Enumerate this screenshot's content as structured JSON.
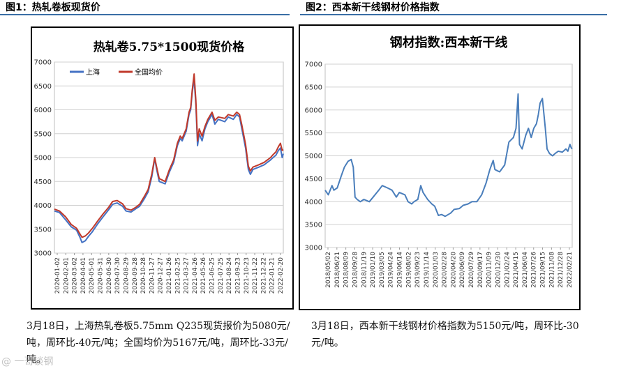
{
  "header": {
    "fig1_title": "图1：热轧卷板现货价",
    "fig2_title": "图2：西本新干线钢材价格指数"
  },
  "captions": {
    "left": "3月18日，上海热轧卷板5.75mm Q235现货报价为5080元/吨，周环比-40元/吨；全国均价为5167元/吨，周环比-33元/吨。",
    "right": "3月18日，西本新干线钢材价格指数为5150元/吨，周环比-30元/吨。"
  },
  "watermark": "@ 一哥谈钢",
  "colors": {
    "shanghai": "#4472c4",
    "national": "#c0392b",
    "index": "#4a7ebb",
    "rule": "#3a6ea5"
  },
  "chart_data": [
    {
      "type": "line",
      "title": "热轧卷5.75*1500现货价格",
      "ylim": [
        3000,
        7000
      ],
      "yticks": [
        3000,
        3500,
        4000,
        4500,
        5000,
        5500,
        6000,
        6500,
        7000
      ],
      "xlabels": [
        "2020-01-02",
        "2020-02-01",
        "2020-03-02",
        "2020-04-01",
        "2020-05-01",
        "2020-05-31",
        "2020-06-30",
        "2020-07-30",
        "2020-08-29",
        "2020-09-28",
        "2020-10-28",
        "2020-11-27",
        "2020-12-27",
        "2021-01-26",
        "2021-02-25",
        "2021-03-27",
        "2021-04-26",
        "2021-05-26",
        "2021-06-25",
        "2021-07-25",
        "2021-08-24",
        "2021-09-23",
        "2021-10-23",
        "2021-11-22",
        "2021-12-22",
        "2022-01-21",
        "2022-02-20"
      ],
      "legend_position": "top-left",
      "x_range": [
        "2020-01-02",
        "2022-03-18"
      ],
      "series": [
        {
          "name": "上海",
          "points": [
            [
              "2020-01-02",
              3880
            ],
            [
              "2020-01-20",
              3850
            ],
            [
              "2020-02-10",
              3700
            ],
            [
              "2020-03-01",
              3550
            ],
            [
              "2020-03-20",
              3480
            ],
            [
              "2020-04-01",
              3330
            ],
            [
              "2020-04-08",
              3220
            ],
            [
              "2020-04-20",
              3260
            ],
            [
              "2020-05-01",
              3350
            ],
            [
              "2020-05-15",
              3450
            ],
            [
              "2020-06-01",
              3600
            ],
            [
              "2020-06-20",
              3750
            ],
            [
              "2020-07-10",
              3900
            ],
            [
              "2020-07-25",
              4020
            ],
            [
              "2020-08-10",
              4050
            ],
            [
              "2020-08-29",
              3980
            ],
            [
              "2020-09-10",
              3880
            ],
            [
              "2020-09-28",
              3860
            ],
            [
              "2020-10-15",
              3930
            ],
            [
              "2020-10-28",
              3980
            ],
            [
              "2020-11-15",
              4150
            ],
            [
              "2020-11-27",
              4280
            ],
            [
              "2020-12-10",
              4600
            ],
            [
              "2020-12-20",
              4980
            ],
            [
              "2020-12-27",
              4750
            ],
            [
              "2021-01-05",
              4500
            ],
            [
              "2021-01-26",
              4450
            ],
            [
              "2021-02-10",
              4700
            ],
            [
              "2021-02-25",
              4900
            ],
            [
              "2021-03-10",
              5250
            ],
            [
              "2021-03-20",
              5400
            ],
            [
              "2021-03-27",
              5350
            ],
            [
              "2021-04-10",
              5550
            ],
            [
              "2021-04-20",
              5900
            ],
            [
              "2021-04-26",
              6000
            ],
            [
              "2021-05-01",
              6350
            ],
            [
              "2021-05-08",
              6650
            ],
            [
              "2021-05-14",
              6100
            ],
            [
              "2021-05-20",
              5250
            ],
            [
              "2021-05-26",
              5500
            ],
            [
              "2021-06-05",
              5350
            ],
            [
              "2021-06-15",
              5600
            ],
            [
              "2021-06-25",
              5750
            ],
            [
              "2021-07-10",
              5900
            ],
            [
              "2021-07-20",
              5700
            ],
            [
              "2021-08-01",
              5800
            ],
            [
              "2021-08-24",
              5750
            ],
            [
              "2021-09-05",
              5850
            ],
            [
              "2021-09-23",
              5800
            ],
            [
              "2021-10-05",
              5900
            ],
            [
              "2021-10-15",
              5850
            ],
            [
              "2021-10-23",
              5600
            ],
            [
              "2021-11-05",
              5200
            ],
            [
              "2021-11-15",
              4750
            ],
            [
              "2021-11-22",
              4650
            ],
            [
              "2021-12-01",
              4750
            ],
            [
              "2021-12-22",
              4800
            ],
            [
              "2022-01-10",
              4850
            ],
            [
              "2022-01-21",
              4900
            ],
            [
              "2022-02-01",
              4950
            ],
            [
              "2022-02-10",
              5000
            ],
            [
              "2022-02-20",
              5050
            ],
            [
              "2022-03-01",
              5150
            ],
            [
              "2022-03-08",
              5200
            ],
            [
              "2022-03-14",
              5000
            ],
            [
              "2022-03-18",
              5080
            ]
          ]
        },
        {
          "name": "全国均价",
          "points": [
            [
              "2020-01-02",
              3920
            ],
            [
              "2020-01-20",
              3880
            ],
            [
              "2020-02-10",
              3760
            ],
            [
              "2020-03-01",
              3600
            ],
            [
              "2020-03-20",
              3520
            ],
            [
              "2020-04-01",
              3400
            ],
            [
              "2020-04-08",
              3330
            ],
            [
              "2020-04-20",
              3360
            ],
            [
              "2020-05-01",
              3420
            ],
            [
              "2020-05-15",
              3520
            ],
            [
              "2020-06-01",
              3660
            ],
            [
              "2020-06-20",
              3810
            ],
            [
              "2020-07-10",
              3950
            ],
            [
              "2020-07-25",
              4080
            ],
            [
              "2020-08-10",
              4100
            ],
            [
              "2020-08-29",
              4030
            ],
            [
              "2020-09-10",
              3930
            ],
            [
              "2020-09-28",
              3900
            ],
            [
              "2020-10-15",
              3960
            ],
            [
              "2020-10-28",
              4020
            ],
            [
              "2020-11-15",
              4200
            ],
            [
              "2020-11-27",
              4330
            ],
            [
              "2020-12-10",
              4660
            ],
            [
              "2020-12-20",
              5000
            ],
            [
              "2020-12-27",
              4800
            ],
            [
              "2021-01-05",
              4560
            ],
            [
              "2021-01-26",
              4500
            ],
            [
              "2021-02-10",
              4750
            ],
            [
              "2021-02-25",
              4950
            ],
            [
              "2021-03-10",
              5300
            ],
            [
              "2021-03-20",
              5450
            ],
            [
              "2021-03-27",
              5400
            ],
            [
              "2021-04-10",
              5600
            ],
            [
              "2021-04-20",
              5950
            ],
            [
              "2021-04-26",
              6050
            ],
            [
              "2021-05-01",
              6400
            ],
            [
              "2021-05-08",
              6750
            ],
            [
              "2021-05-14",
              6200
            ],
            [
              "2021-05-20",
              5350
            ],
            [
              "2021-05-26",
              5600
            ],
            [
              "2021-06-05",
              5450
            ],
            [
              "2021-06-15",
              5650
            ],
            [
              "2021-06-25",
              5800
            ],
            [
              "2021-07-10",
              5950
            ],
            [
              "2021-07-20",
              5780
            ],
            [
              "2021-08-01",
              5850
            ],
            [
              "2021-08-24",
              5820
            ],
            [
              "2021-09-05",
              5900
            ],
            [
              "2021-09-23",
              5870
            ],
            [
              "2021-10-05",
              5950
            ],
            [
              "2021-10-15",
              5900
            ],
            [
              "2021-10-23",
              5680
            ],
            [
              "2021-11-05",
              5280
            ],
            [
              "2021-11-15",
              4820
            ],
            [
              "2021-11-22",
              4720
            ],
            [
              "2021-12-01",
              4800
            ],
            [
              "2021-12-22",
              4850
            ],
            [
              "2022-01-10",
              4900
            ],
            [
              "2022-01-21",
              4950
            ],
            [
              "2022-02-01",
              5000
            ],
            [
              "2022-02-10",
              5060
            ],
            [
              "2022-02-20",
              5120
            ],
            [
              "2022-03-01",
              5230
            ],
            [
              "2022-03-08",
              5300
            ],
            [
              "2022-03-14",
              5150
            ],
            [
              "2022-03-18",
              5167
            ]
          ]
        }
      ]
    },
    {
      "type": "line",
      "title": "钢材指数:西本新干线",
      "ylim": [
        3000,
        7000
      ],
      "yticks": [
        3000,
        3500,
        4000,
        4500,
        5000,
        5500,
        6000,
        6500,
        7000
      ],
      "xlabels": [
        "2018/05/02",
        "2018/06/21",
        "2018/08/09",
        "2018/09/28",
        "2018/11/19",
        "2019/01/10",
        "2019/03/05",
        "2019/04/24",
        "2019/06/14",
        "2019/08/02",
        "2019/09/23",
        "2019/11/14",
        "2020/01/03",
        "2020/02/28",
        "2020/04/20",
        "2020/06/09",
        "2020/07/29",
        "2020/09/17",
        "2020/11/09",
        "2020/12/30",
        "2021/02/24",
        "2021/04/15",
        "2021/06/04",
        "2021/07/26",
        "2021/09/15",
        "2021/11/08",
        "2021/12/28",
        "2022/02/21"
      ],
      "x_range": [
        "2018-05-02",
        "2022-03-18"
      ],
      "series": [
        {
          "name": "",
          "points": [
            [
              "2018-05-02",
              4250
            ],
            [
              "2018-05-20",
              4150
            ],
            [
              "2018-06-10",
              4350
            ],
            [
              "2018-06-21",
              4250
            ],
            [
              "2018-07-10",
              4300
            ],
            [
              "2018-08-01",
              4550
            ],
            [
              "2018-08-20",
              4750
            ],
            [
              "2018-09-10",
              4880
            ],
            [
              "2018-09-28",
              4920
            ],
            [
              "2018-10-10",
              4750
            ],
            [
              "2018-10-20",
              4100
            ],
            [
              "2018-11-01",
              4050
            ],
            [
              "2018-11-19",
              4000
            ],
            [
              "2018-12-10",
              4050
            ],
            [
              "2019-01-10",
              4000
            ],
            [
              "2019-02-01",
              4100
            ],
            [
              "2019-03-05",
              4250
            ],
            [
              "2019-03-25",
              4350
            ],
            [
              "2019-04-24",
              4300
            ],
            [
              "2019-05-20",
              4250
            ],
            [
              "2019-06-14",
              4100
            ],
            [
              "2019-07-01",
              4200
            ],
            [
              "2019-08-02",
              4150
            ],
            [
              "2019-08-20",
              4000
            ],
            [
              "2019-09-10",
              3950
            ],
            [
              "2019-09-23",
              4000
            ],
            [
              "2019-10-15",
              4050
            ],
            [
              "2019-11-01",
              4350
            ],
            [
              "2019-11-14",
              4200
            ],
            [
              "2019-12-10",
              4050
            ],
            [
              "2020-01-03",
              3950
            ],
            [
              "2020-01-20",
              3900
            ],
            [
              "2020-02-10",
              3700
            ],
            [
              "2020-02-28",
              3720
            ],
            [
              "2020-03-20",
              3680
            ],
            [
              "2020-04-20",
              3750
            ],
            [
              "2020-05-10",
              3830
            ],
            [
              "2020-06-09",
              3850
            ],
            [
              "2020-07-01",
              3920
            ],
            [
              "2020-07-29",
              3950
            ],
            [
              "2020-08-20",
              4000
            ],
            [
              "2020-09-17",
              4000
            ],
            [
              "2020-10-15",
              4150
            ],
            [
              "2020-11-09",
              4400
            ],
            [
              "2020-12-01",
              4700
            ],
            [
              "2020-12-20",
              4900
            ],
            [
              "2020-12-30",
              4700
            ],
            [
              "2021-01-26",
              4650
            ],
            [
              "2021-02-24",
              4800
            ],
            [
              "2021-03-20",
              5300
            ],
            [
              "2021-04-15",
              5400
            ],
            [
              "2021-04-30",
              5600
            ],
            [
              "2021-05-12",
              6350
            ],
            [
              "2021-05-20",
              5250
            ],
            [
              "2021-06-04",
              5150
            ],
            [
              "2021-06-25",
              5450
            ],
            [
              "2021-07-10",
              5600
            ],
            [
              "2021-07-26",
              5400
            ],
            [
              "2021-08-10",
              5600
            ],
            [
              "2021-08-25",
              5700
            ],
            [
              "2021-09-05",
              5900
            ],
            [
              "2021-09-15",
              6150
            ],
            [
              "2021-09-28",
              6250
            ],
            [
              "2021-10-15",
              5600
            ],
            [
              "2021-10-25",
              5150
            ],
            [
              "2021-11-08",
              5050
            ],
            [
              "2021-11-25",
              5000
            ],
            [
              "2021-12-10",
              5050
            ],
            [
              "2021-12-28",
              5100
            ],
            [
              "2022-01-20",
              5080
            ],
            [
              "2022-02-10",
              5150
            ],
            [
              "2022-02-21",
              5100
            ],
            [
              "2022-03-05",
              5250
            ],
            [
              "2022-03-12",
              5180
            ],
            [
              "2022-03-18",
              5150
            ]
          ]
        }
      ]
    }
  ]
}
